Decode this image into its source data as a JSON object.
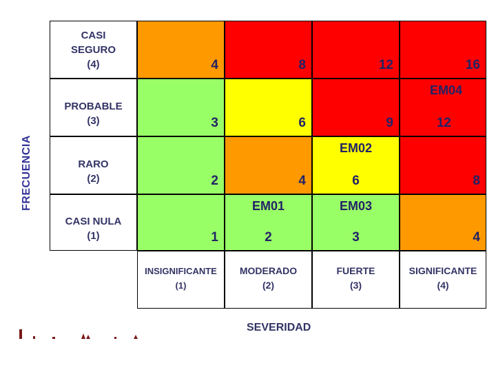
{
  "axes": {
    "frecuencia_label": "FRECUENCIA",
    "severidad_label": "SEVERIDAD"
  },
  "rows": [
    {
      "line1": "CASI",
      "line2": "SEGURO",
      "line3": "(4)"
    },
    {
      "line1": "PROBABLE",
      "line2": "(3)"
    },
    {
      "line1": "RARO",
      "line2": "(2)"
    },
    {
      "line1": "CASI NULA",
      "line2": "(1)"
    }
  ],
  "columns": [
    {
      "line1": "INSIGNIFICANTE",
      "line2": "(1)"
    },
    {
      "line1": "MODERADO",
      "line2": "(2)"
    },
    {
      "line1": "FUERTE",
      "line2": "(3)"
    },
    {
      "line1": "SIGNIFICANTE",
      "line2": "(4)"
    }
  ],
  "cells": {
    "r4c1": {
      "score": "4"
    },
    "r4c2": {
      "score": "8"
    },
    "r4c3": {
      "score": "12"
    },
    "r4c4": {
      "score": "16"
    },
    "r3c1": {
      "score": "3"
    },
    "r3c2": {
      "score": "6"
    },
    "r3c3": {
      "score": "9"
    },
    "r3c4": {
      "code": "EM04",
      "score": "12"
    },
    "r2c1": {
      "score": "2"
    },
    "r2c2": {
      "score": "4"
    },
    "r2c3": {
      "code": "EM02",
      "score": "6"
    },
    "r2c4": {
      "score": "8"
    },
    "r1c1": {
      "score": "1"
    },
    "r1c2": {
      "code": "EM01",
      "score": "2"
    },
    "r1c3": {
      "code": "EM03",
      "score": "3"
    },
    "r1c4": {
      "score": "4"
    }
  },
  "colors": {
    "green": "#99FF66",
    "yellow": "#FFFF00",
    "orange": "#FF9900",
    "red": "#FF0000",
    "text_dark": "#222266",
    "label": "#333366",
    "border": "#000000"
  }
}
